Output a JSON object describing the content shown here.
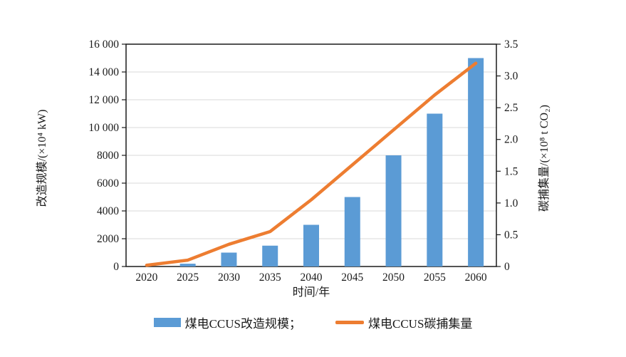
{
  "chart_data": {
    "type": "combo-bar-line",
    "categories": [
      "2020",
      "2025",
      "2030",
      "2035",
      "2040",
      "2045",
      "2050",
      "2055",
      "2060"
    ],
    "series": [
      {
        "name": "煤电CCUS改造规模",
        "type": "bar",
        "axis": "left",
        "values": [
          0,
          200,
          1000,
          1500,
          3000,
          5000,
          8000,
          11000,
          15000
        ],
        "color": "#5B9BD5"
      },
      {
        "name": "煤电CCUS碳捕集量",
        "type": "line",
        "axis": "right",
        "values": [
          0.02,
          0.1,
          0.35,
          0.55,
          1.05,
          1.6,
          2.15,
          2.7,
          3.2
        ],
        "color": "#ED7D31"
      }
    ],
    "title": "",
    "xlabel": "时间/年",
    "ylabel_left": "改造规模/(×10⁴ kW)",
    "ylabel_right": "碳捕集量/(×10⁸ t CO₂)",
    "ylim_left": [
      0,
      16000
    ],
    "ylim_right": [
      0,
      3.5
    ],
    "left_ticks": [
      {
        "label": "16 000",
        "value": 16000
      },
      {
        "label": "14 000",
        "value": 14000
      },
      {
        "label": "12 000",
        "value": 12000
      },
      {
        "label": "10 000",
        "value": 10000
      },
      {
        "label": "8000",
        "value": 8000
      },
      {
        "label": "6000",
        "value": 6000
      },
      {
        "label": "4000",
        "value": 4000
      },
      {
        "label": "2000",
        "value": 2000
      },
      {
        "label": "0",
        "value": 0
      }
    ],
    "right_ticks": [
      {
        "label": "3.5",
        "value": 3.5
      },
      {
        "label": "3.0",
        "value": 3.0
      },
      {
        "label": "2.5",
        "value": 2.5
      },
      {
        "label": "2.0",
        "value": 2.0
      },
      {
        "label": "1.5",
        "value": 1.5
      },
      {
        "label": "1.0",
        "value": 1.0
      },
      {
        "label": "0.5",
        "value": 0.5
      },
      {
        "label": "0",
        "value": 0
      }
    ],
    "grid": "horizontal",
    "legend_position": "bottom",
    "colors": {
      "bar": "#5B9BD5",
      "line": "#ED7D31",
      "gridline": "#D9D9D9",
      "frame": "#1a1a1a",
      "text": "#1a1a1a"
    }
  },
  "legend": {
    "items": [
      {
        "label": "煤电CCUS改造规模；"
      },
      {
        "label": "煤电CCUS碳捕集量"
      }
    ]
  }
}
